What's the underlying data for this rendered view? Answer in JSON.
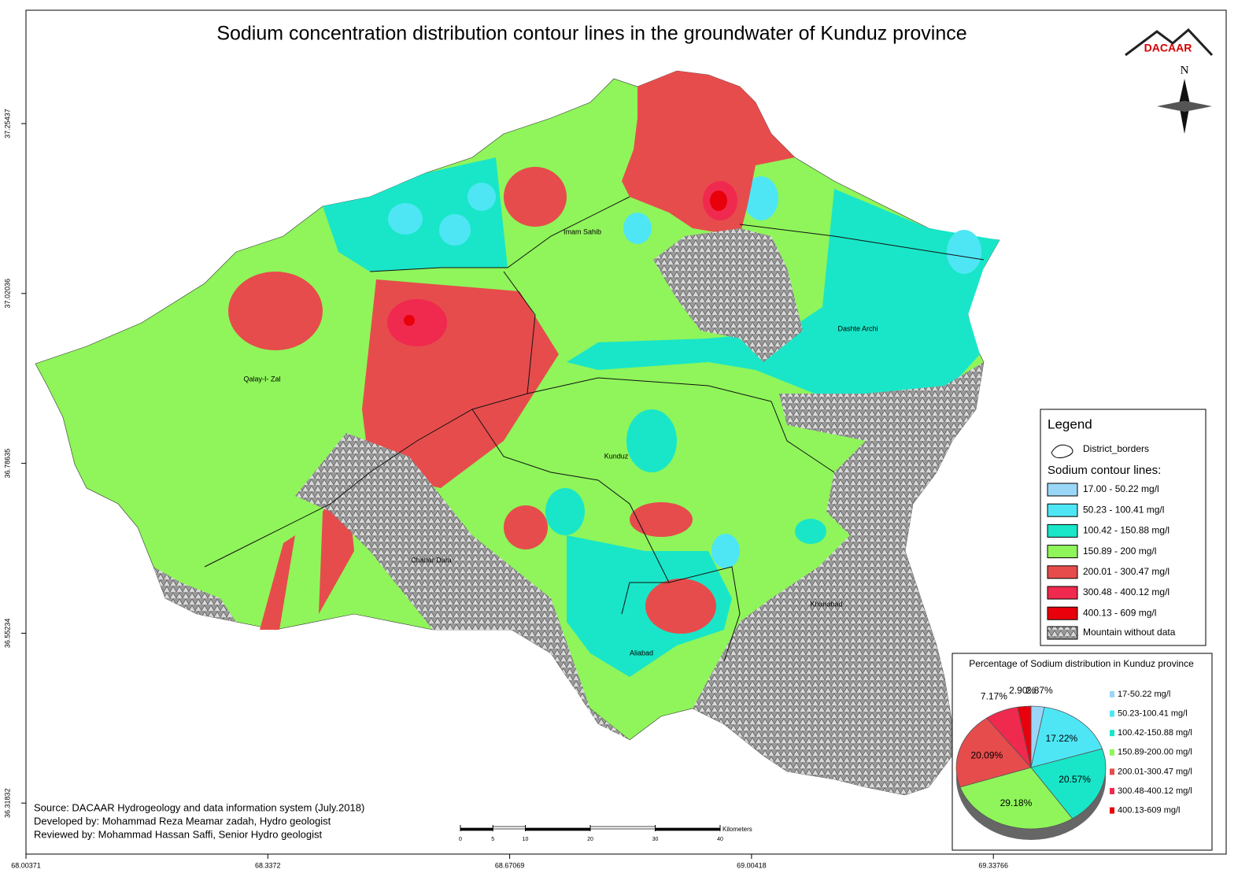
{
  "title": "Sodium concentration distribution contour lines in the groundwater of Kunduz province",
  "logo": "DACAAR",
  "north": "N",
  "districts": [
    "Imam Sahib",
    "Dashte Archi",
    "Qalay-I- Zal",
    "Kunduz",
    "Chahar Dara",
    "Khanabad",
    "Aliabad"
  ],
  "legend": {
    "title": "Legend",
    "district": "District_borders",
    "contour_title": "Sodium contour lines:",
    "classes": [
      {
        "label": "17.00 - 50.22 mg/l",
        "color": "#9ad6f7"
      },
      {
        "label": "50.23 - 100.41 mg/l",
        "color": "#4ee6f5"
      },
      {
        "label": "100.42 - 150.88 mg/l",
        "color": "#19e6c8"
      },
      {
        "label": "150.89 - 200 mg/l",
        "color": "#8ff55a"
      },
      {
        "label": "200.01 - 300.47 mg/l",
        "color": "#e64c4c"
      },
      {
        "label": "300.48 - 400.12 mg/l",
        "color": "#f0294f"
      },
      {
        "label": "400.13 - 609 mg/l",
        "color": "#e8000b"
      }
    ],
    "mountain": "Mountain without data"
  },
  "chart_data": {
    "type": "pie",
    "title": "Percentage of Sodium distribution in Kunduz province",
    "categories": [
      "17-50.22 mg/l",
      "50.23-100.41 mg/l",
      "100.42-150.88 mg/l",
      "150.89-200.00 mg/l",
      "200.01-300.47 mg/l",
      "300.48-400.12 mg/l",
      "400.13-609 mg/l"
    ],
    "values": [
      2.87,
      17.22,
      20.57,
      29.18,
      20.09,
      7.17,
      2.9
    ],
    "value_labels": [
      "2.87%",
      "17.22%",
      "20.57%",
      "29.18%",
      "20.09%",
      "7.17%",
      "2.90%"
    ],
    "colors": [
      "#9ad6f7",
      "#4ee6f5",
      "#19e6c8",
      "#8ff55a",
      "#e64c4c",
      "#f0294f",
      "#e8000b"
    ]
  },
  "credits": [
    "Source: DACAAR Hydrogeology and data information system (July.2018)",
    "Developed by: Mohammad Reza Meamar zadah, Hydro geologist",
    "Reviewed by: Mohammad Hassan Saffi, Senior Hydro geologist"
  ],
  "scale": {
    "ticks": [
      0,
      5,
      10,
      20,
      30,
      40
    ],
    "unit": "Kilometers"
  },
  "x_coords": [
    "68.00371",
    "68.3372",
    "68.67069",
    "69.00418",
    "69.33766"
  ],
  "y_coords": [
    "37.25437",
    "37.02036",
    "36.78635",
    "36.55234",
    "36.31832"
  ]
}
